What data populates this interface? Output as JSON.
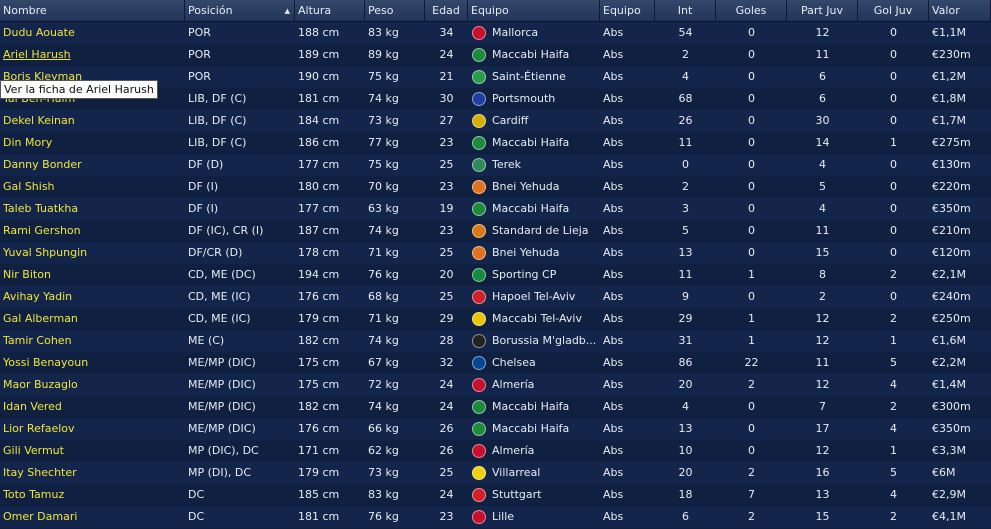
{
  "headers": [
    "Nombre",
    "Posición",
    "Altura",
    "Peso",
    "Edad",
    "Equipo",
    "Equipo",
    "Int",
    "Goles",
    "Part Juv",
    "Gol Juv",
    "Valor"
  ],
  "sort_indicator": "▲",
  "tooltip": "Ver la ficha de Ariel Harush",
  "players": [
    {
      "name": "Dudu Aouate",
      "pos": "POR",
      "alt": "188 cm",
      "peso": "83 kg",
      "edad": "34",
      "club": "Mallorca",
      "club_color": "#c8102e",
      "eq": "Abs",
      "int": "54",
      "goles": "0",
      "pj": "12",
      "gj": "0",
      "valor": "€1,1M"
    },
    {
      "name": "Ariel Harush",
      "pos": "POR",
      "alt": "189 cm",
      "peso": "89 kg",
      "edad": "24",
      "club": "Maccabi Haifa",
      "club_color": "#1e8a3c",
      "eq": "Abs",
      "int": "2",
      "goles": "0",
      "pj": "11",
      "gj": "0",
      "valor": "€230m"
    },
    {
      "name": "Boris Kleyman",
      "pos": "POR",
      "alt": "190 cm",
      "peso": "75 kg",
      "edad": "21",
      "club": "Saint-Étienne",
      "club_color": "#2a9d4a",
      "eq": "Abs",
      "int": "4",
      "goles": "0",
      "pj": "6",
      "gj": "0",
      "valor": "€1,2M"
    },
    {
      "name": "Tal Ben-Haim",
      "pos": "LIB, DF (C)",
      "alt": "181 cm",
      "peso": "74 kg",
      "edad": "30",
      "club": "Portsmouth",
      "club_color": "#1d3fa0",
      "eq": "Abs",
      "int": "68",
      "goles": "0",
      "pj": "6",
      "gj": "0",
      "valor": "€1,8M"
    },
    {
      "name": "Dekel Keinan",
      "pos": "LIB, DF (C)",
      "alt": "184 cm",
      "peso": "73 kg",
      "edad": "27",
      "club": "Cardiff",
      "club_color": "#d4b000",
      "eq": "Abs",
      "int": "26",
      "goles": "0",
      "pj": "30",
      "gj": "0",
      "valor": "€1,7M"
    },
    {
      "name": "Din Mory",
      "pos": "LIB, DF (C)",
      "alt": "186 cm",
      "peso": "77 kg",
      "edad": "23",
      "club": "Maccabi Haifa",
      "club_color": "#1e8a3c",
      "eq": "Abs",
      "int": "11",
      "goles": "0",
      "pj": "14",
      "gj": "1",
      "valor": "€275m"
    },
    {
      "name": "Danny Bonder",
      "pos": "DF (D)",
      "alt": "177 cm",
      "peso": "75 kg",
      "edad": "25",
      "club": "Terek",
      "club_color": "#2e8b57",
      "eq": "Abs",
      "int": "0",
      "goles": "0",
      "pj": "4",
      "gj": "0",
      "valor": "€130m"
    },
    {
      "name": "Gal Shish",
      "pos": "DF (I)",
      "alt": "180 cm",
      "peso": "70 kg",
      "edad": "23",
      "club": "Bnei Yehuda",
      "club_color": "#e2731e",
      "eq": "Abs",
      "int": "2",
      "goles": "0",
      "pj": "5",
      "gj": "0",
      "valor": "€220m"
    },
    {
      "name": "Taleb Tuatkha",
      "pos": "DF (I)",
      "alt": "177 cm",
      "peso": "63 kg",
      "edad": "19",
      "club": "Maccabi Haifa",
      "club_color": "#1e8a3c",
      "eq": "Abs",
      "int": "3",
      "goles": "0",
      "pj": "4",
      "gj": "0",
      "valor": "€350m"
    },
    {
      "name": "Rami Gershon",
      "pos": "DF (IC), CR (I)",
      "alt": "187 cm",
      "peso": "74 kg",
      "edad": "23",
      "club": "Standard de Lieja",
      "club_color": "#d97a1a",
      "eq": "Abs",
      "int": "5",
      "goles": "0",
      "pj": "11",
      "gj": "0",
      "valor": "€210m"
    },
    {
      "name": "Yuval Shpungin",
      "pos": "DF/CR (D)",
      "alt": "178 cm",
      "peso": "71 kg",
      "edad": "25",
      "club": "Bnei Yehuda",
      "club_color": "#e2731e",
      "eq": "Abs",
      "int": "13",
      "goles": "0",
      "pj": "15",
      "gj": "0",
      "valor": "€120m"
    },
    {
      "name": "Nir Biton",
      "pos": "CD, ME (DC)",
      "alt": "194 cm",
      "peso": "76 kg",
      "edad": "20",
      "club": "Sporting CP",
      "club_color": "#168a3e",
      "eq": "Abs",
      "int": "11",
      "goles": "1",
      "pj": "8",
      "gj": "2",
      "valor": "€2,1M"
    },
    {
      "name": "Avihay Yadin",
      "pos": "CD, ME (IC)",
      "alt": "176 cm",
      "peso": "68 kg",
      "edad": "25",
      "club": "Hapoel Tel-Aviv",
      "club_color": "#d0202a",
      "eq": "Abs",
      "int": "9",
      "goles": "0",
      "pj": "2",
      "gj": "0",
      "valor": "€240m"
    },
    {
      "name": "Gal Alberman",
      "pos": "CD, ME (IC)",
      "alt": "179 cm",
      "peso": "71 kg",
      "edad": "29",
      "club": "Maccabi Tel-Aviv",
      "club_color": "#e8c500",
      "eq": "Abs",
      "int": "29",
      "goles": "1",
      "pj": "12",
      "gj": "2",
      "valor": "€250m"
    },
    {
      "name": "Tamir Cohen",
      "pos": "ME (C)",
      "alt": "182 cm",
      "peso": "74 kg",
      "edad": "28",
      "club": "Borussia M'gladb...",
      "club_color": "#222222",
      "eq": "Abs",
      "int": "31",
      "goles": "1",
      "pj": "12",
      "gj": "1",
      "valor": "€1,6M"
    },
    {
      "name": "Yossi Benayoun",
      "pos": "ME/MP (DIC)",
      "alt": "175 cm",
      "peso": "67 kg",
      "edad": "32",
      "club": "Chelsea",
      "club_color": "#034694",
      "eq": "Abs",
      "int": "86",
      "goles": "22",
      "pj": "11",
      "gj": "5",
      "valor": "€2,2M"
    },
    {
      "name": "Maor Buzaglo",
      "pos": "ME/MP (DIC)",
      "alt": "175 cm",
      "peso": "72 kg",
      "edad": "24",
      "club": "Almería",
      "club_color": "#c8102e",
      "eq": "Abs",
      "int": "20",
      "goles": "2",
      "pj": "12",
      "gj": "4",
      "valor": "€1,4M"
    },
    {
      "name": "Idan Vered",
      "pos": "ME/MP (DIC)",
      "alt": "182 cm",
      "peso": "74 kg",
      "edad": "24",
      "club": "Maccabi Haifa",
      "club_color": "#1e8a3c",
      "eq": "Abs",
      "int": "4",
      "goles": "0",
      "pj": "7",
      "gj": "2",
      "valor": "€300m"
    },
    {
      "name": "Lior Refaelov",
      "pos": "ME/MP (DIC)",
      "alt": "176 cm",
      "peso": "66 kg",
      "edad": "26",
      "club": "Maccabi Haifa",
      "club_color": "#1e8a3c",
      "eq": "Abs",
      "int": "13",
      "goles": "0",
      "pj": "17",
      "gj": "4",
      "valor": "€350m"
    },
    {
      "name": "Gili Vermut",
      "pos": "MP (DIC), DC",
      "alt": "171 cm",
      "peso": "62 kg",
      "edad": "26",
      "club": "Almería",
      "club_color": "#c8102e",
      "eq": "Abs",
      "int": "10",
      "goles": "0",
      "pj": "12",
      "gj": "1",
      "valor": "€3,3M"
    },
    {
      "name": "Itay Shechter",
      "pos": "MP (DI), DC",
      "alt": "179 cm",
      "peso": "73 kg",
      "edad": "25",
      "club": "Villarreal",
      "club_color": "#f2d00a",
      "eq": "Abs",
      "int": "20",
      "goles": "2",
      "pj": "16",
      "gj": "5",
      "valor": "€6M"
    },
    {
      "name": "Toto Tamuz",
      "pos": "DC",
      "alt": "185 cm",
      "peso": "83 kg",
      "edad": "24",
      "club": "Stuttgart",
      "club_color": "#d2202a",
      "eq": "Abs",
      "int": "18",
      "goles": "7",
      "pj": "13",
      "gj": "4",
      "valor": "€2,9M"
    },
    {
      "name": "Omer Damari",
      "pos": "DC",
      "alt": "181 cm",
      "peso": "76 kg",
      "edad": "23",
      "club": "Lille",
      "club_color": "#c8102e",
      "eq": "Abs",
      "int": "6",
      "goles": "2",
      "pj": "15",
      "gj": "2",
      "valor": "€4,1M"
    }
  ]
}
